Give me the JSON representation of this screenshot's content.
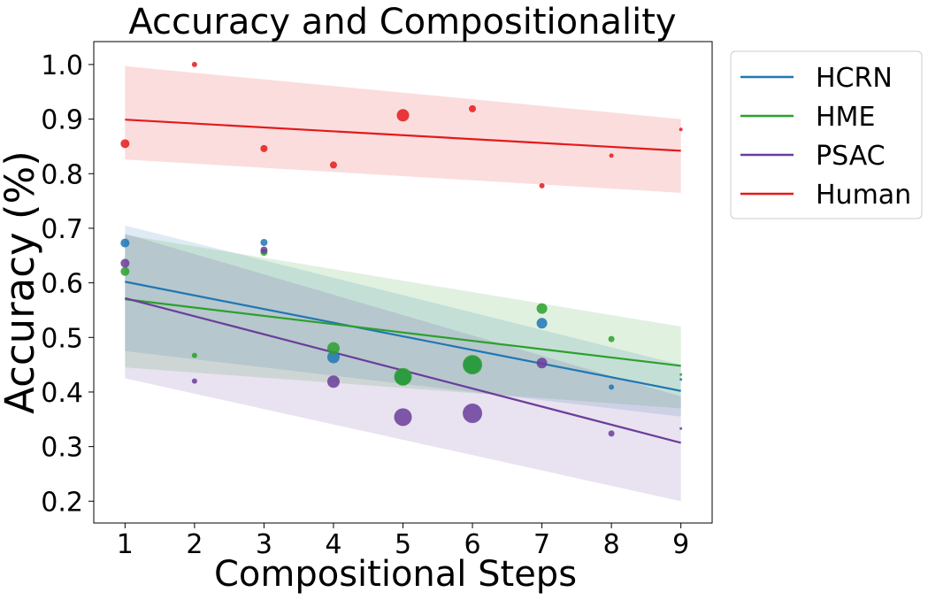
{
  "chart_data": {
    "type": "scatter",
    "title": "Accuracy and Compositionality",
    "xlabel": "Compositional Steps",
    "ylabel": "Accuracy (%)",
    "xlim": [
      0.55,
      9.45
    ],
    "ylim": [
      0.16,
      1.042
    ],
    "xticks": [
      1,
      2,
      3,
      4,
      5,
      6,
      7,
      8,
      9
    ],
    "yticks": [
      0.2,
      0.3,
      0.4,
      0.5,
      0.6,
      0.7,
      0.8,
      0.9,
      1.0
    ],
    "xtick_labels": [
      "1",
      "2",
      "3",
      "4",
      "5",
      "6",
      "7",
      "8",
      "9"
    ],
    "ytick_labels": [
      "0.2",
      "0.3",
      "0.4",
      "0.5",
      "0.6",
      "0.7",
      "0.8",
      "0.9",
      "1.0"
    ],
    "legend_position": "outside-top-right",
    "series": [
      {
        "name": "HCRN",
        "color": "#1f77b4",
        "points": [
          {
            "x": 1,
            "y": 0.673,
            "r": 5
          },
          {
            "x": 3,
            "y": 0.674,
            "r": 4
          },
          {
            "x": 4,
            "y": 0.464,
            "r": 7
          },
          {
            "x": 5,
            "y": 0.427,
            "r": 9
          },
          {
            "x": 6,
            "y": 0.45,
            "r": 10
          },
          {
            "x": 7,
            "y": 0.526,
            "r": 6
          },
          {
            "x": 8,
            "y": 0.409,
            "r": 3
          },
          {
            "x": 9,
            "y": 0.423,
            "r": 1.5
          }
        ],
        "trend": [
          0.602,
          0.402
        ],
        "band_lower": [
          0.475,
          0.355
        ],
        "band_upper": [
          0.705,
          0.45
        ]
      },
      {
        "name": "HME",
        "color": "#2ca02c",
        "points": [
          {
            "x": 1,
            "y": 0.621,
            "r": 5
          },
          {
            "x": 2,
            "y": 0.467,
            "r": 3
          },
          {
            "x": 3,
            "y": 0.656,
            "r": 4
          },
          {
            "x": 4,
            "y": 0.48,
            "r": 7
          },
          {
            "x": 5,
            "y": 0.428,
            "r": 10
          },
          {
            "x": 6,
            "y": 0.45,
            "r": 11
          },
          {
            "x": 7,
            "y": 0.553,
            "r": 6
          },
          {
            "x": 8,
            "y": 0.497,
            "r": 3.5
          },
          {
            "x": 9,
            "y": 0.432,
            "r": 1.5
          }
        ],
        "trend": [
          0.57,
          0.448
        ],
        "band_lower": [
          0.445,
          0.37
        ],
        "band_upper": [
          0.688,
          0.52
        ]
      },
      {
        "name": "PSAC",
        "color": "#6a3d9a",
        "points": [
          {
            "x": 1,
            "y": 0.636,
            "r": 5
          },
          {
            "x": 2,
            "y": 0.42,
            "r": 3
          },
          {
            "x": 3,
            "y": 0.66,
            "r": 4
          },
          {
            "x": 4,
            "y": 0.419,
            "r": 7
          },
          {
            "x": 5,
            "y": 0.354,
            "r": 10
          },
          {
            "x": 6,
            "y": 0.361,
            "r": 11
          },
          {
            "x": 7,
            "y": 0.453,
            "r": 6
          },
          {
            "x": 8,
            "y": 0.324,
            "r": 3.5
          },
          {
            "x": 9,
            "y": 0.333,
            "r": 1.5
          }
        ],
        "trend": [
          0.572,
          0.307
        ],
        "band_lower": [
          0.425,
          0.2
        ],
        "band_upper": [
          0.69,
          0.392
        ]
      },
      {
        "name": "Human",
        "color": "#e31a1c",
        "points": [
          {
            "x": 1,
            "y": 0.855,
            "r": 5
          },
          {
            "x": 2,
            "y": 1.0,
            "r": 3
          },
          {
            "x": 3,
            "y": 0.846,
            "r": 4
          },
          {
            "x": 4,
            "y": 0.816,
            "r": 4
          },
          {
            "x": 5,
            "y": 0.907,
            "r": 7
          },
          {
            "x": 6,
            "y": 0.919,
            "r": 4
          },
          {
            "x": 7,
            "y": 0.778,
            "r": 3
          },
          {
            "x": 8,
            "y": 0.833,
            "r": 2.5
          },
          {
            "x": 9,
            "y": 0.881,
            "r": 2
          }
        ],
        "trend": [
          0.899,
          0.842
        ],
        "band_lower": [
          0.826,
          0.765
        ],
        "band_upper": [
          0.997,
          0.9
        ]
      }
    ]
  }
}
